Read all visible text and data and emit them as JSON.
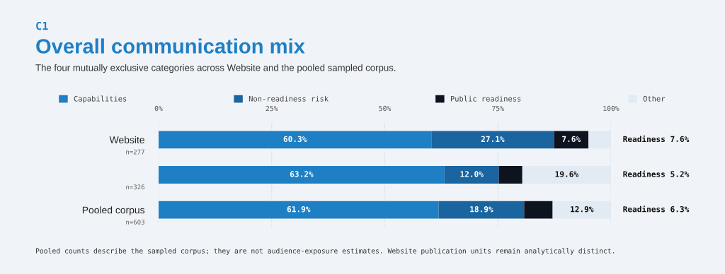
{
  "chart_data": {
    "type": "bar",
    "orientation": "horizontal",
    "stacked": true,
    "title": "Overall communication mix",
    "subtitle": "The four mutually exclusive categories across Website and the pooled sampled corpus.",
    "categories": [
      "Website",
      null,
      "Pooled corpus"
    ],
    "series": [
      {
        "name": "Capabilities",
        "color": "#1f7fc4",
        "values": [
          60.3,
          63.2,
          61.9
        ],
        "value_labels": [
          "60.3%",
          "63.2%",
          "61.9%"
        ]
      },
      {
        "name": "Non-readiness risk",
        "color": "#1a64a0",
        "values": [
          27.1,
          12.0,
          18.9
        ],
        "value_labels": [
          "27.1%",
          "12.0%",
          "18.9%"
        ]
      },
      {
        "name": "Public readiness",
        "color": "#0d1420",
        "values": [
          7.6,
          5.2,
          6.3
        ],
        "value_labels": [
          "7.6%",
          null,
          null
        ]
      },
      {
        "name": "Other",
        "color": "#e2eaf3",
        "values": [
          5.0,
          19.6,
          12.9
        ],
        "value_labels": [
          null,
          "19.6%",
          "12.9%"
        ]
      }
    ],
    "xlim": [
      0,
      100
    ],
    "xticks": [
      {
        "value": 0,
        "label": "0%"
      },
      {
        "value": 25,
        "label": "25%"
      },
      {
        "value": 50,
        "label": "50%"
      },
      {
        "value": 75,
        "label": "75%"
      },
      {
        "value": 100,
        "label": "100%"
      }
    ],
    "grid": "x",
    "legend": "top",
    "annotations": [
      "C1",
      "n=277",
      "n=326",
      "n=603",
      "Readiness 7.6%",
      "Readiness 5.2%",
      "Readiness 6.3%",
      "Pooled counts describe the sampled corpus; they are not audience-exposure estimates. Website publication units remain analytically distinct."
    ]
  }
}
